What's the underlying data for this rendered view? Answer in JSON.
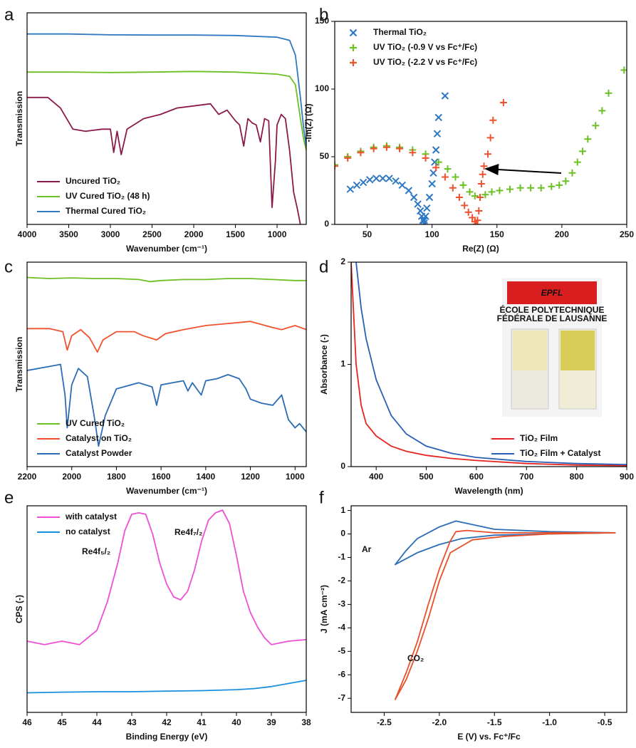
{
  "chart_data": [
    {
      "type": "line",
      "label": "a",
      "xlabel": "Wavenumber (cm⁻¹)",
      "ylabel": "Transmission",
      "xlim": [
        4000,
        650
      ],
      "ylim": [
        0,
        100
      ],
      "xticks": [
        4000,
        3500,
        3000,
        2500,
        2000,
        1500,
        1000
      ],
      "legend": "lower left",
      "series": [
        {
          "name": "Uncured TiO₂",
          "color": "#8b1a4a",
          "x": [
            4000,
            3750,
            3600,
            3450,
            3300,
            3100,
            3000,
            2960,
            2920,
            2870,
            2800,
            2600,
            2400,
            2200,
            2000,
            1800,
            1700,
            1600,
            1500,
            1450,
            1400,
            1350,
            1300,
            1250,
            1200,
            1150,
            1100,
            1060,
            1020,
            1000,
            950,
            900,
            850,
            800,
            760,
            720
          ],
          "values": [
            60,
            60,
            55,
            45,
            44,
            45,
            45,
            34,
            44,
            33,
            45,
            50,
            52,
            55,
            56,
            57,
            52,
            54,
            49,
            47,
            37,
            50,
            48,
            47,
            39,
            50,
            49,
            8,
            30,
            47,
            52,
            50,
            35,
            15,
            8,
            0
          ]
        },
        {
          "name": "UV Cured TiO₂ (48 h)",
          "color": "#6cc024",
          "x": [
            4000,
            3500,
            3000,
            2500,
            2000,
            1500,
            1000,
            850,
            780,
            720,
            680,
            650
          ],
          "values": [
            72,
            72,
            71.8,
            72,
            72.3,
            72,
            71,
            70,
            66,
            50,
            40,
            35
          ]
        },
        {
          "name": "Thermal Cured TiO₂",
          "color": "#2f78c4",
          "x": [
            4000,
            3500,
            3000,
            2500,
            2000,
            1500,
            1000,
            850,
            780,
            720,
            680,
            650
          ],
          "values": [
            90,
            90,
            89.6,
            89.5,
            89.5,
            89.3,
            88.5,
            87,
            80,
            60,
            45,
            37
          ]
        }
      ]
    },
    {
      "type": "scatter",
      "label": "b",
      "xlabel": "Re(Z) (Ω)",
      "ylabel": "-Im(Z) (Ω)",
      "xlim": [
        25,
        250
      ],
      "ylim": [
        0,
        150
      ],
      "xticks": [
        50,
        100,
        150,
        200,
        250
      ],
      "yticks": [
        0,
        50,
        100,
        150
      ],
      "legend": "upper left",
      "series": [
        {
          "name": "Thermal TiO₂",
          "color": "#2f78c4",
          "marker": "x",
          "x": [
            37,
            42,
            47,
            52,
            57,
            62,
            67,
            72,
            77,
            82,
            86,
            89,
            91,
            92,
            93,
            94,
            94,
            95,
            96,
            98,
            100,
            101,
            102,
            103,
            104,
            105,
            110
          ],
          "values": [
            26,
            29,
            31,
            33,
            34,
            34,
            34,
            32,
            29,
            25,
            20,
            15,
            10,
            6,
            3,
            1,
            3,
            6,
            12,
            20,
            30,
            38,
            46,
            55,
            67,
            79,
            95
          ]
        },
        {
          "name": "UV TiO₂ (-0.9 V vs Fc⁺/Fc)",
          "color": "#6cc024",
          "marker": "+",
          "x": [
            25,
            35,
            45,
            55,
            65,
            75,
            85,
            95,
            105,
            112,
            118,
            124,
            129,
            133,
            137,
            141,
            146,
            152,
            160,
            168,
            176,
            184,
            192,
            198,
            203,
            208,
            212,
            216,
            220,
            226,
            231,
            236,
            248
          ],
          "values": [
            44,
            50,
            54,
            57,
            58,
            57,
            55,
            52,
            46,
            41,
            35,
            29,
            24,
            21,
            20,
            22,
            24,
            25,
            26,
            27,
            27,
            27,
            28,
            29,
            32,
            38,
            46,
            54,
            63,
            73,
            84,
            97,
            114
          ]
        },
        {
          "name": "UV TiO₂ (-2.2 V vs Fc⁺/Fc)",
          "color": "#f0522d",
          "marker": "+",
          "x": [
            25,
            35,
            45,
            55,
            65,
            75,
            85,
            95,
            103,
            110,
            116,
            121,
            125,
            128,
            131,
            133,
            134,
            135,
            136,
            137,
            138,
            139,
            140,
            143,
            145,
            147,
            155
          ],
          "values": [
            43,
            49,
            53,
            56,
            57,
            56,
            53,
            49,
            42,
            35,
            27,
            20,
            14,
            9,
            5,
            2,
            0,
            3,
            10,
            20,
            30,
            37,
            43,
            52,
            64,
            77,
            90
          ]
        }
      ]
    },
    {
      "type": "line",
      "label": "c",
      "xlabel": "Wavenumber (cm⁻¹)",
      "ylabel": "Transmission",
      "xlim": [
        2200,
        950
      ],
      "ylim": [
        0,
        100
      ],
      "xticks": [
        2200,
        2000,
        1800,
        1600,
        1400,
        1200,
        1000
      ],
      "legend": "lower left",
      "series": [
        {
          "name": "UV Cured TiO₂",
          "color": "#6cc024",
          "x": [
            2200,
            2100,
            2000,
            1900,
            1800,
            1700,
            1650,
            1600,
            1500,
            1400,
            1300,
            1200,
            1100,
            1000,
            950
          ],
          "values": [
            92.5,
            92,
            92.3,
            92,
            92,
            91.5,
            90.5,
            91,
            91.5,
            91.5,
            92,
            92,
            91.5,
            91,
            91
          ]
        },
        {
          "name": "Catalyst on TiO₂",
          "color": "#f0522d",
          "x": [
            2200,
            2100,
            2040,
            2020,
            2000,
            1960,
            1920,
            1885,
            1860,
            1800,
            1720,
            1680,
            1620,
            1580,
            1500,
            1400,
            1300,
            1200,
            1100,
            1060,
            1000,
            950
          ],
          "values": [
            67.5,
            67.5,
            66,
            57,
            64,
            67,
            63,
            56,
            62,
            66,
            66,
            64,
            62,
            65,
            67,
            69,
            70,
            71,
            68,
            67,
            69,
            67
          ]
        },
        {
          "name": "Catalyst Powder",
          "color": "#2b6cb5",
          "x": [
            2200,
            2100,
            2050,
            2030,
            2020,
            2000,
            1970,
            1930,
            1900,
            1880,
            1850,
            1800,
            1700,
            1640,
            1620,
            1600,
            1500,
            1480,
            1460,
            1420,
            1400,
            1350,
            1300,
            1250,
            1220,
            1200,
            1150,
            1100,
            1060,
            1030,
            1000,
            980,
            950
          ],
          "values": [
            47,
            49,
            50,
            35,
            19,
            40,
            48,
            44,
            25,
            10,
            25,
            38,
            41,
            39,
            30,
            40,
            42,
            37,
            41,
            35,
            42,
            43,
            45,
            43,
            38,
            33,
            31,
            30,
            35,
            23,
            19,
            21,
            17
          ]
        }
      ]
    },
    {
      "type": "line",
      "label": "d",
      "xlabel": "Wavelength (nm)",
      "ylabel": "Absorbance (-)",
      "xlim": [
        350,
        900
      ],
      "ylim": [
        0,
        2
      ],
      "xticks": [
        400,
        500,
        600,
        700,
        800,
        900
      ],
      "yticks": [
        0,
        1,
        2
      ],
      "legend": "lower right",
      "inset_texts": [
        "EPFL",
        "ÉCOLE POLYTECHNIQUE",
        "FÉDÉRALE DE LAUSANNE"
      ],
      "series": [
        {
          "name": "TiO₂ Film",
          "color": "#e8241e",
          "x": [
            350,
            355,
            360,
            370,
            380,
            400,
            430,
            460,
            500,
            550,
            600,
            700,
            800,
            900
          ],
          "values": [
            2,
            1.5,
            1,
            0.6,
            0.42,
            0.3,
            0.2,
            0.15,
            0.11,
            0.08,
            0.06,
            0.03,
            0.015,
            0.01
          ]
        },
        {
          "name": "TiO₂ Film + Catalyst",
          "color": "#2b5fb5",
          "x": [
            360,
            370,
            380,
            400,
            430,
            460,
            500,
            550,
            600,
            700,
            800,
            900
          ],
          "values": [
            2,
            1.55,
            1.25,
            0.85,
            0.5,
            0.32,
            0.2,
            0.13,
            0.09,
            0.05,
            0.03,
            0.02
          ]
        }
      ]
    },
    {
      "type": "line",
      "label": "e",
      "xlabel": "Binding Energy (eV)",
      "ylabel": "CPS (-)",
      "xlim": [
        46,
        38
      ],
      "ylim": [
        0,
        100
      ],
      "xticks": [
        46,
        45,
        44,
        43,
        42,
        41,
        40,
        39,
        38
      ],
      "legend": "upper left",
      "annotations": [
        {
          "text": "Re4f₅/₂",
          "color": "#000000"
        },
        {
          "text": "Re4f₇/₂",
          "color": "#000000"
        }
      ],
      "series": [
        {
          "name": "with catalyst",
          "color": "#ee4fd6",
          "x": [
            46,
            45.5,
            45,
            44.5,
            44,
            43.7,
            43.4,
            43.2,
            43,
            42.8,
            42.6,
            42.4,
            42.2,
            42,
            41.8,
            41.6,
            41.4,
            41.2,
            41,
            40.8,
            40.6,
            40.4,
            40.2,
            40,
            39.8,
            39.6,
            39.4,
            39.2,
            39,
            38.5,
            38
          ],
          "values": [
            34.5,
            32.8,
            34.5,
            32.8,
            39.7,
            53.4,
            72.4,
            87.9,
            95.9,
            96.6,
            95.9,
            86.2,
            72.4,
            62.1,
            55.9,
            54.5,
            58.6,
            69,
            82.8,
            93.1,
            96.6,
            97.9,
            91.4,
            75.9,
            58.6,
            48.3,
            41.4,
            36.2,
            32.8,
            34.5,
            35.2
          ]
        },
        {
          "name": "no catalyst",
          "color": "#1a8fe0",
          "x": [
            46,
            45,
            44,
            43,
            42,
            41,
            40,
            39.5,
            39,
            38.5,
            38
          ],
          "values": [
            9.5,
            9.8,
            10,
            10,
            10.3,
            10.5,
            11,
            11.5,
            12.5,
            14,
            15.5
          ]
        }
      ]
    },
    {
      "type": "line",
      "label": "f",
      "xlabel": "E (V) vs. Fc⁺/Fc",
      "ylabel": "J (mA cm⁻²)",
      "xlim": [
        -2.8,
        -0.3
      ],
      "ylim": [
        -7.6,
        1.2
      ],
      "xticks": [
        -2.5,
        {
          "value": -2,
          "label": "-2.0"
        },
        -1.5,
        {
          "value": -1,
          "label": "-1.0"
        },
        -0.5
      ],
      "yticks": [
        1,
        0,
        -1,
        -2,
        -3,
        -4,
        -5,
        -6,
        -7
      ],
      "annotations": [
        {
          "text": "Ar",
          "color": "#2d6db5"
        },
        {
          "text": "CO₂",
          "color": "#e8502a"
        }
      ],
      "series": [
        {
          "color": "#2d6db5",
          "x": [
            -0.4,
            -1,
            -1.5,
            -1.8,
            -2.0,
            -2.2,
            -2.4,
            -2.3,
            -2.2,
            -2.0,
            -1.85,
            -1.7,
            -1.5,
            -1.0,
            -0.4
          ],
          "values": [
            0.05,
            0,
            -0.05,
            -0.2,
            -0.45,
            -0.8,
            -1.3,
            -0.7,
            -0.2,
            0.3,
            0.55,
            0.4,
            0.2,
            0.1,
            0.05
          ]
        },
        {
          "color": "#e8502a",
          "x": [
            -0.4,
            -1,
            -1.5,
            -1.75,
            -1.85,
            -1.9,
            -2.0,
            -2.1,
            -2.2,
            -2.3,
            -2.4,
            -2.3,
            -2.2,
            -2.1,
            -2.0,
            -1.9,
            -1.7,
            -1.4,
            -1,
            -0.4
          ],
          "values": [
            0.05,
            0.05,
            0.05,
            0.15,
            0.1,
            -0.3,
            -1.5,
            -3,
            -4.6,
            -5.9,
            -7.05,
            -6.2,
            -5,
            -3.6,
            -2,
            -0.8,
            -0.25,
            -0.1,
            0,
            0.05
          ]
        }
      ]
    }
  ]
}
